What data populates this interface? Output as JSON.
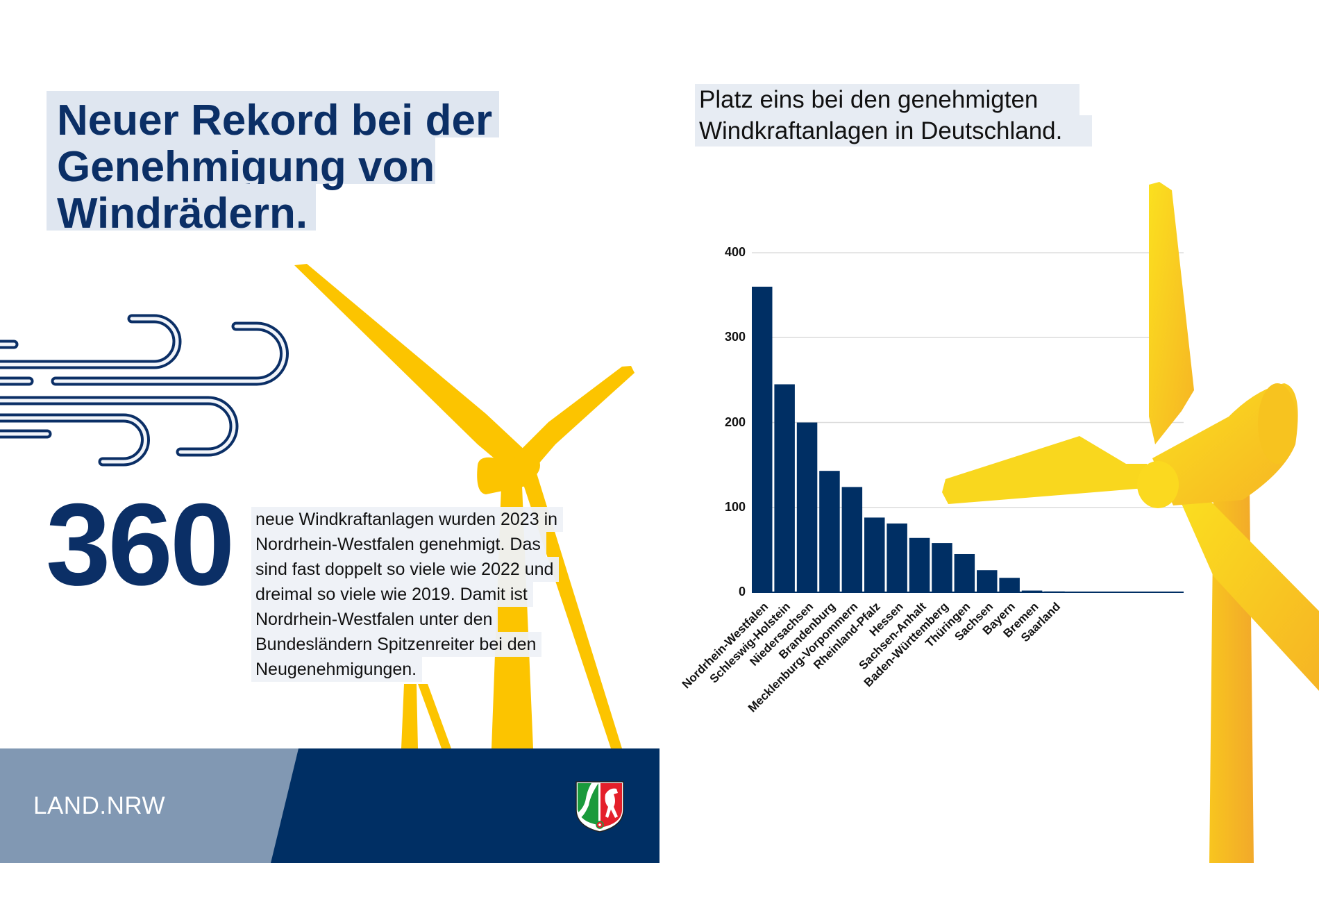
{
  "left": {
    "headline": [
      "Neuer Rekord bei der",
      "Genehmigung von",
      "Windrädern."
    ],
    "big_number": "360",
    "paragraph_lines": [
      "neue Windkraftanlagen wurden 2023 in",
      "Nordrhein-Westfalen genehmigt. Das",
      "sind fast doppelt so viele wie 2022 und",
      "dreimal so viele wie 2019. Damit ist",
      "Nordrhein-Westfalen unter den",
      "Bundesländern Spitzenreiter bei den",
      "Neugenehmigungen."
    ]
  },
  "footer": {
    "brand": "LAND.NRW",
    "emblem": "nrw-coat-of-arms-icon"
  },
  "colors": {
    "navy": "#002f64",
    "footer_light": "#8198b3",
    "yellow": "#fcc400",
    "highlight": "#dfe6f0"
  },
  "chart_data": {
    "type": "bar",
    "title": "Platz eins bei den genehmigten Windkraftanlagen in Deutschland.",
    "title_lines": [
      "Platz eins bei den genehmigten",
      "Windkraftanlagen in Deutschland."
    ],
    "categories": [
      "Nordrhein-Westfalen",
      "Schleswig-Holstein",
      "Niedersachsen",
      "Brandenburg",
      "Mecklenburg-Vorpommern",
      "Rheinland-Pfalz",
      "Hessen",
      "Sachsen-Anhalt",
      "Baden-Württemberg",
      "Thüringen",
      "Sachsen",
      "Bayern",
      "Bremen",
      "Saarland"
    ],
    "values": [
      360,
      245,
      200,
      143,
      124,
      88,
      81,
      64,
      58,
      45,
      26,
      17,
      2,
      1
    ],
    "yticks": [
      "0",
      "100",
      "200",
      "300",
      "400"
    ],
    "ylim": [
      0,
      400
    ],
    "grid": true,
    "xlabel": "",
    "ylabel": "",
    "bar_color": "#002f64"
  }
}
